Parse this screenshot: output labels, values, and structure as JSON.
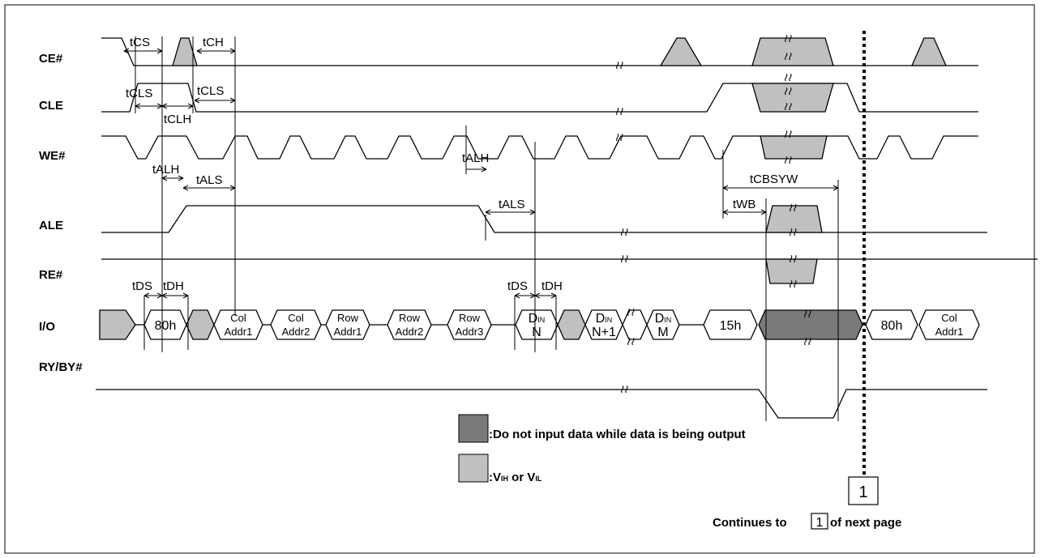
{
  "signals": {
    "ce": "CE#",
    "cle": "CLE",
    "we": "WE#",
    "ale": "ALE",
    "re": "RE#",
    "io": "I/O",
    "rb": "RY/BY#"
  },
  "timing": {
    "tcs": "tCS",
    "tch": "tCH",
    "tcls_a": "tCLS",
    "tcls_b": "tCLS",
    "tclh": "tCLH",
    "talh_a": "tALH",
    "tals_a": "tALS",
    "talh_b": "tALH",
    "tals_b": "tALS",
    "tds_a": "tDS",
    "tdh_a": "tDH",
    "tds_b": "tDS",
    "tdh_b": "tDH",
    "tcbsyw": "tCBSYW",
    "twb": "tWB"
  },
  "bus": {
    "b80h": "80h",
    "col1_a": "Col",
    "col1_b": "Addr1",
    "col2_a": "Col",
    "col2_b": "Addr2",
    "row1_a": "Row",
    "row1_b": "Addr1",
    "row2_a": "Row",
    "row2_b": "Addr2",
    "row3_a": "Row",
    "row3_b": "Addr3",
    "din_d": "D",
    "din_sub": "IN",
    "din_n": "N",
    "din_n1": "N+1",
    "din_m": "M",
    "b15h": "15h",
    "b80h_next": "80h",
    "coln_a": "Col",
    "coln_b": "Addr1"
  },
  "legend": {
    "dark": ":Do not input data while data is being output",
    "light_prefix": ":V",
    "vih_sub": "IH",
    "or": " or V",
    "vil_sub": "IL"
  },
  "connector": {
    "label": "1",
    "text_before": "Continues to",
    "text_after": "of next page"
  },
  "colors": {
    "light_fill": "#c0c0c0",
    "dark_fill": "#7a7a7a"
  }
}
